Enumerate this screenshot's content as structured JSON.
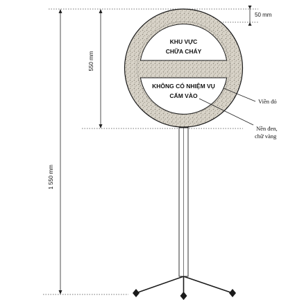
{
  "dimensions": {
    "total_height": "1 550 mm",
    "sign_height": "550 mm",
    "border_width": "50 mm"
  },
  "sign": {
    "top_line1": "KHU VỰC",
    "top_line2": "CHỮA CHÁY",
    "bottom_line1": "KHÔNG CÓ NHIỆM VỤ",
    "bottom_line2": "CẤM VÀO"
  },
  "callouts": {
    "border": "Viền đỏ",
    "background_line1": "Nền đen,",
    "background_line2": "chữ vàng"
  },
  "colors": {
    "border_pattern": "#c9c3b6",
    "panel": "#ffffff",
    "stroke": "#1a1a1a"
  }
}
